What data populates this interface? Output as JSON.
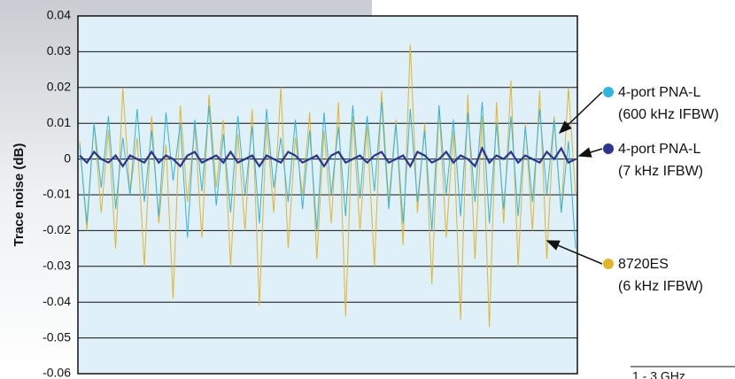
{
  "chart_data": {
    "type": "line",
    "y_label": "Trace noise (dB)",
    "footnote": "1 - 3 GHz",
    "ylim": [
      -0.06,
      0.04
    ],
    "yticks": [
      0.04,
      0.03,
      0.02,
      0.01,
      0,
      -0.01,
      -0.02,
      -0.03,
      -0.04,
      -0.05,
      -0.06
    ],
    "grid": true,
    "series": [
      {
        "name": "8720ES",
        "detail": "(6 kHz IFBW)",
        "color": "#e0b52e",
        "values": [
          0.005,
          -0.02,
          0.01,
          -0.015,
          0.008,
          -0.025,
          0.02,
          -0.01,
          0.006,
          -0.03,
          0.012,
          -0.018,
          0.004,
          -0.039,
          0.015,
          -0.012,
          0.009,
          -0.022,
          0.018,
          -0.008,
          0.011,
          -0.03,
          0.007,
          -0.02,
          0.014,
          -0.041,
          0.01,
          -0.015,
          0.02,
          -0.025,
          0.006,
          -0.01,
          0.013,
          -0.028,
          0.008,
          -0.018,
          0.016,
          -0.044,
          0.012,
          -0.02,
          0.009,
          -0.03,
          0.019,
          -0.012,
          0.011,
          -0.024,
          0.032,
          -0.015,
          0.01,
          -0.035,
          0.015,
          -0.022,
          0.008,
          -0.045,
          0.018,
          -0.028,
          0.012,
          -0.047,
          0.016,
          -0.018,
          0.022,
          -0.03,
          0.01,
          -0.02,
          0.019,
          -0.028,
          0.012,
          -0.015,
          0.02,
          -0.01
        ]
      },
      {
        "name": "4-port PNA-L",
        "detail": "(600 kHz IFBW)",
        "color": "#33b4dc",
        "values": [
          0.004,
          -0.018,
          0.01,
          -0.008,
          0.012,
          -0.014,
          0.006,
          -0.01,
          0.014,
          -0.012,
          0.008,
          -0.016,
          0.013,
          -0.006,
          0.01,
          -0.022,
          0.011,
          -0.009,
          0.015,
          -0.013,
          0.007,
          -0.015,
          0.012,
          -0.01,
          0.009,
          -0.018,
          0.014,
          -0.008,
          0.006,
          -0.012,
          0.011,
          -0.014,
          0.008,
          -0.02,
          0.013,
          -0.01,
          0.009,
          -0.016,
          0.015,
          -0.011,
          0.012,
          -0.009,
          0.016,
          -0.014,
          0.01,
          -0.018,
          0.014,
          -0.012,
          0.008,
          -0.02,
          0.015,
          -0.01,
          0.011,
          -0.016,
          0.013,
          -0.012,
          0.016,
          -0.018,
          0.01,
          -0.014,
          0.012,
          -0.016,
          0.009,
          -0.012,
          0.014,
          -0.01,
          0.011,
          -0.015,
          0.005,
          -0.025
        ]
      },
      {
        "name": "4-port PNA-L",
        "detail": "(7 kHz IFBW)",
        "color": "#2b3590",
        "values": [
          0.001,
          -0.001,
          0.002,
          0,
          -0.001,
          0.001,
          -0.002,
          0.001,
          0,
          -0.001,
          0.002,
          -0.001,
          0.001,
          0,
          -0.002,
          0.001,
          0.002,
          -0.001,
          0,
          0.001,
          -0.001,
          0.002,
          -0.001,
          0,
          0.001,
          -0.002,
          0.001,
          0,
          -0.001,
          0.002,
          0.001,
          -0.001,
          0,
          0.001,
          -0.002,
          0.001,
          0.002,
          -0.001,
          0,
          0.001,
          -0.001,
          0.001,
          0.002,
          -0.001,
          0,
          0.001,
          -0.002,
          0.002,
          0.001,
          -0.001,
          0,
          0.002,
          -0.001,
          0.001,
          0,
          -0.002,
          0.003,
          -0.001,
          0.001,
          0,
          0.002,
          -0.001,
          0.001,
          0,
          -0.001,
          0.002,
          0,
          0.003,
          -0.001,
          0
        ]
      }
    ]
  }
}
